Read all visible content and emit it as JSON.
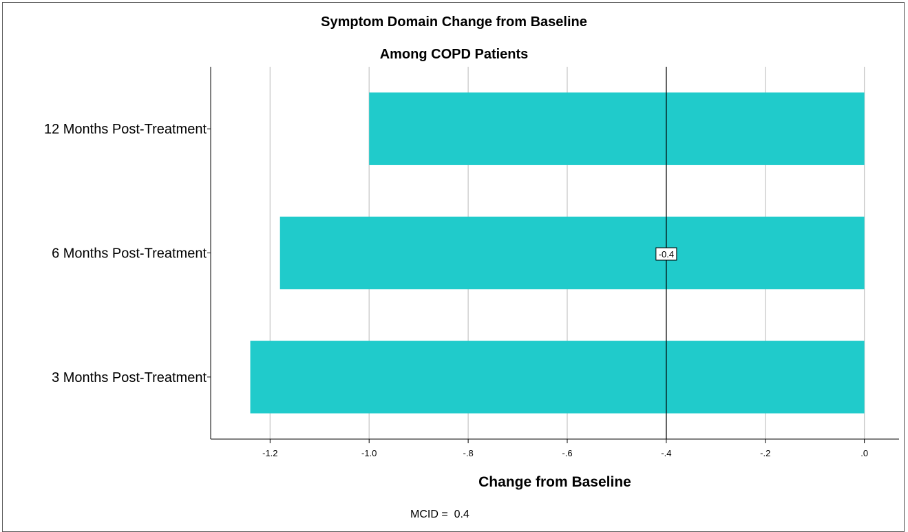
{
  "chart_data": {
    "type": "bar",
    "orientation": "horizontal",
    "title": "Symptom Domain Change from Baseline",
    "subtitle": "Among COPD Patients",
    "xlabel": "Change from Baseline",
    "ylabel": "",
    "categories": [
      "12 Months Post-Treatment",
      "6 Months Post-Treatment",
      "3 Months Post-Treatment"
    ],
    "values": [
      -1.0,
      -1.18,
      -1.24
    ],
    "xlim": [
      -1.32,
      0.07
    ],
    "xticks": [
      -1.2,
      -1.0,
      -0.8,
      -0.6,
      -0.4,
      -0.2,
      0.0
    ],
    "xtick_labels": [
      "-1.2",
      "-1.0",
      "-.8",
      "-.6",
      "-.4",
      "-.2",
      ".0"
    ],
    "grid": "vertical",
    "bar_color": "#20cbcb",
    "reference_line": {
      "value": -0.4,
      "label": "-0.4",
      "color": "#000000"
    },
    "annotation": "MCID =  0.4"
  }
}
